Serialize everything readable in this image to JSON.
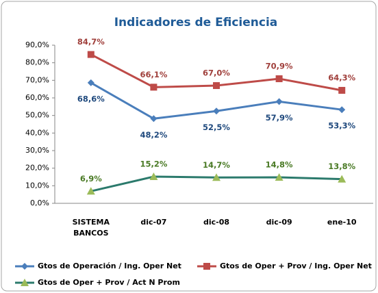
{
  "chart_data": {
    "type": "line",
    "title": "Indicadores de Eficiencia",
    "categories": [
      "SISTEMA BANCOS",
      "dic-07",
      "dic-08",
      "dic-09",
      "ene-10"
    ],
    "ylim": [
      0,
      90
    ],
    "yticks": [
      {
        "value": 0,
        "label": "0,0%"
      },
      {
        "value": 10,
        "label": "10,0%"
      },
      {
        "value": 20,
        "label": "20,0%"
      },
      {
        "value": 30,
        "label": "30,0%"
      },
      {
        "value": 40,
        "label": "40,0%"
      },
      {
        "value": 50,
        "label": "50,0%"
      },
      {
        "value": 60,
        "label": "60,0%"
      },
      {
        "value": 70,
        "label": "70,0%"
      },
      {
        "value": 80,
        "label": "80,0%"
      },
      {
        "value": 90,
        "label": "90,0%"
      }
    ],
    "legend": "bottom",
    "series": [
      {
        "name": "Gtos de Operación  / Ing. Oper Net",
        "color": "#4a7ebb",
        "marker": "diamond",
        "marker_color": "#4a7ebb",
        "label_position": "below",
        "values": [
          68.6,
          48.2,
          52.5,
          57.9,
          53.3
        ],
        "value_labels": [
          "68,6%",
          "48,2%",
          "52,5%",
          "57,9%",
          "53,3%"
        ]
      },
      {
        "name": "Gtos de Oper + Prov / Ing. Oper Net",
        "color": "#be4b48",
        "marker": "square",
        "marker_color": "#be4b48",
        "label_position": "above",
        "values": [
          84.7,
          66.1,
          67.0,
          70.9,
          64.3
        ],
        "value_labels": [
          "84,7%",
          "66,1%",
          "67,0%",
          "70,9%",
          "64,3%"
        ]
      },
      {
        "name": "Gtos de Oper + Prov / Act N Prom",
        "color": "#2b7a6c",
        "marker": "triangle",
        "marker_color": "#9bbb59",
        "label_position": "above",
        "values": [
          6.9,
          15.2,
          14.7,
          14.8,
          13.8
        ],
        "value_labels": [
          "6,9%",
          "15,2%",
          "14,7%",
          "14,8%",
          "13,8%"
        ]
      }
    ]
  }
}
